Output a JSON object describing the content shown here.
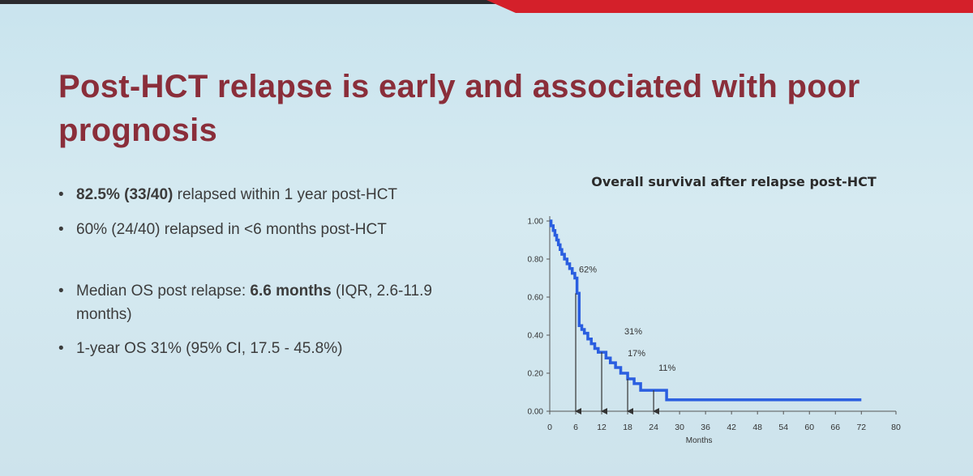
{
  "title": "Post-HCT relapse is early and associated with poor prognosis",
  "bullets": {
    "b1": {
      "bold": "82.5% (33/40)",
      "rest": " relapsed within 1 year post-HCT"
    },
    "b2": {
      "text": "60% (24/40) relapsed in <6 months post-HCT"
    },
    "b3": {
      "pre": "Median OS post relapse: ",
      "bold": "6.6 months",
      "rest": " (IQR, 2.6-11.9 months)"
    },
    "b4": {
      "text": "1-year OS 31% (95% CI, 17.5 - 45.8%)"
    }
  },
  "colors": {
    "title": "#8a2e3a",
    "curve": "#2a5ee0",
    "accent": "#d4202a"
  },
  "chart_data": {
    "type": "line",
    "title": "Overall survival after relapse post-HCT",
    "xlabel": "Months",
    "ylabel": "",
    "xlim": [
      0,
      80
    ],
    "ylim": [
      0,
      1
    ],
    "xticks": [
      "0",
      "6",
      "12",
      "18",
      "24",
      "30",
      "36",
      "42",
      "48",
      "54",
      "60",
      "66",
      "72",
      "80"
    ],
    "yticks": [
      "0.00",
      "0.20",
      "0.40",
      "0.60",
      "0.80",
      "1.00"
    ],
    "series": [
      {
        "name": "Overall survival",
        "x": [
          0,
          0.3,
          0.8,
          1.2,
          1.6,
          2.0,
          2.4,
          2.8,
          3.4,
          4.0,
          4.6,
          5.2,
          5.8,
          6.3,
          6.8,
          7.4,
          8.0,
          8.8,
          9.6,
          10.4,
          11.2,
          12.0,
          13.0,
          14.0,
          15.2,
          16.4,
          18.0,
          19.5,
          21.0,
          27.0,
          72.0
        ],
        "y": [
          1.0,
          0.975,
          0.95,
          0.925,
          0.9,
          0.875,
          0.85,
          0.825,
          0.8,
          0.775,
          0.75,
          0.725,
          0.7,
          0.62,
          0.45,
          0.43,
          0.41,
          0.38,
          0.355,
          0.33,
          0.31,
          0.31,
          0.28,
          0.255,
          0.23,
          0.2,
          0.17,
          0.145,
          0.11,
          0.06,
          0.06
        ]
      }
    ],
    "annotations": [
      {
        "label": "62%",
        "x": 6,
        "y": 0.62
      },
      {
        "label": "31%",
        "x": 12,
        "y": 0.31
      },
      {
        "label": "17%",
        "x": 18,
        "y": 0.17
      },
      {
        "label": "11%",
        "x": 24,
        "y": 0.11
      }
    ]
  }
}
